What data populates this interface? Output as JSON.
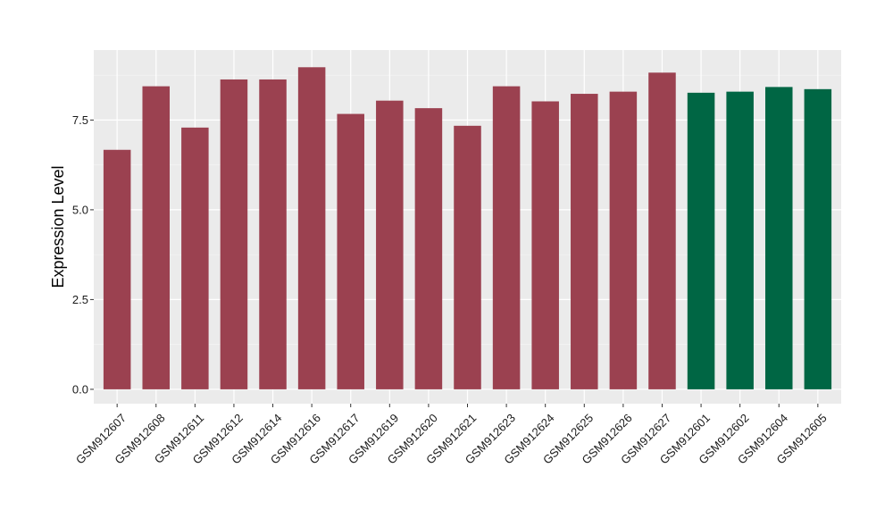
{
  "chart_data": {
    "type": "bar",
    "ylabel": "Expression Level",
    "xlabel": "",
    "ylim": [
      -0.4,
      9.45
    ],
    "yticks": [
      0.0,
      2.5,
      5.0,
      7.5
    ],
    "ytick_labels": [
      "0.0",
      "2.5",
      "5.0",
      "7.5"
    ],
    "grid": true,
    "categories": [
      "GSM912607",
      "GSM912608",
      "GSM912611",
      "GSM912612",
      "GSM912614",
      "GSM912616",
      "GSM912617",
      "GSM912619",
      "GSM912620",
      "GSM912621",
      "GSM912623",
      "GSM912624",
      "GSM912625",
      "GSM912626",
      "GSM912627",
      "GSM912601",
      "GSM912602",
      "GSM912604",
      "GSM912605"
    ],
    "values": [
      6.67,
      8.44,
      7.29,
      8.63,
      8.63,
      8.97,
      7.67,
      8.04,
      7.83,
      7.34,
      8.44,
      8.02,
      8.23,
      8.29,
      8.82,
      8.26,
      8.29,
      8.42,
      8.36
    ],
    "groups": [
      "red",
      "red",
      "red",
      "red",
      "red",
      "red",
      "red",
      "red",
      "red",
      "red",
      "red",
      "red",
      "red",
      "red",
      "red",
      "green",
      "green",
      "green",
      "green"
    ],
    "colors": {
      "red": "#9b4150",
      "green": "#006644",
      "panel": "#ebebeb",
      "grid_major": "#ffffff",
      "grid_minor": "#f5f5f5"
    }
  }
}
